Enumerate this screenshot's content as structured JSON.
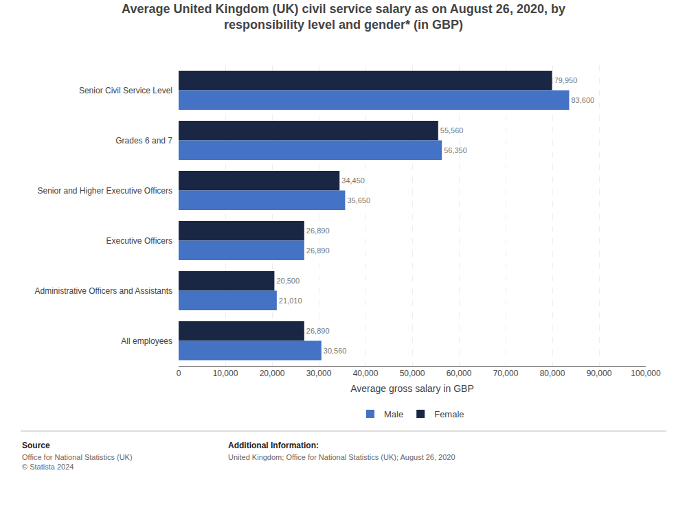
{
  "chart_data": {
    "type": "bar",
    "orientation": "horizontal",
    "title": "Average United Kingdom (UK) civil service salary as on August 26, 2020, by\nresponsibility level and gender* (in GBP)",
    "categories": [
      "Senior Civil Service Level",
      "Grades 6 and 7",
      "Senior and Higher Executive Officers",
      "Executive Officers",
      "Administrative Officers and Assistants",
      "All employees"
    ],
    "series": [
      {
        "name": "Female",
        "color": "#1a2744",
        "values": [
          79950,
          55560,
          34450,
          26890,
          20500,
          26890
        ],
        "value_labels": [
          "79,950",
          "55,560",
          "34,450",
          "26,890",
          "20,500",
          "26,890"
        ]
      },
      {
        "name": "Male",
        "color": "#4472c4",
        "values": [
          83600,
          56350,
          35650,
          26890,
          21010,
          30560
        ],
        "value_labels": [
          "83,600",
          "56,350",
          "35,650",
          "26,890",
          "21,010",
          "30,560"
        ]
      }
    ],
    "xlabel": "Average gross salary in GBP",
    "xlim": [
      0,
      100000
    ],
    "xticks": [
      0,
      {
        "value": 10000,
        "label": "10,000"
      },
      {
        "value": 20000,
        "label": "20,000"
      },
      {
        "value": 30000,
        "label": "30,000"
      },
      {
        "value": 40000,
        "label": "40,000"
      },
      {
        "value": 50000,
        "label": "50,000"
      },
      {
        "value": 60000,
        "label": "60,000"
      },
      {
        "value": 70000,
        "label": "70,000"
      },
      {
        "value": 80000,
        "label": "80,000"
      },
      {
        "value": 90000,
        "label": "90,000"
      },
      {
        "value": 100000,
        "label": "100,000"
      }
    ],
    "grid": true,
    "legend": "bottom",
    "data_labels": true,
    "annotations": [
      "Source",
      "Office for National Statistics (UK)\n© Statista 2024",
      "Additional Information:",
      "United Kingdom; Office for National Statistics (UK); August 26, 2020"
    ]
  }
}
